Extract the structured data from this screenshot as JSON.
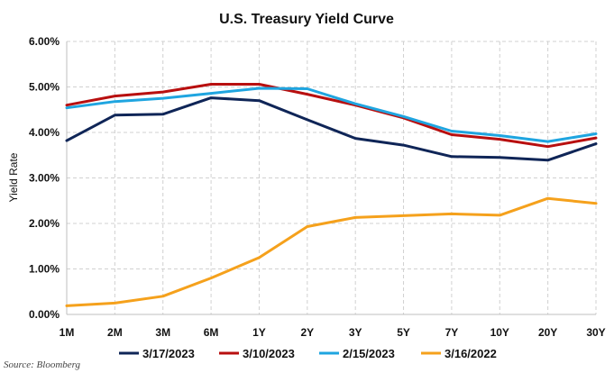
{
  "chart_data": {
    "type": "line",
    "title": "U.S. Treasury Yield Curve",
    "xlabel": "",
    "ylabel": "Yield Rate",
    "categories": [
      "1M",
      "2M",
      "3M",
      "6M",
      "1Y",
      "2Y",
      "3Y",
      "5Y",
      "7Y",
      "10Y",
      "20Y",
      "30Y"
    ],
    "ylim": [
      0,
      6
    ],
    "yticks": [
      "0.00%",
      "1.00%",
      "2.00%",
      "3.00%",
      "4.00%",
      "5.00%",
      "6.00%"
    ],
    "grid": true,
    "legend_position": "bottom",
    "series": [
      {
        "name": "3/17/2023",
        "color": "#0f2557",
        "values": [
          3.82,
          4.38,
          4.4,
          4.76,
          4.7,
          4.28,
          3.87,
          3.72,
          3.47,
          3.45,
          3.39,
          3.75
        ]
      },
      {
        "name": "3/10/2023",
        "color": "#b80f0f",
        "values": [
          4.6,
          4.8,
          4.89,
          5.06,
          5.06,
          4.84,
          4.6,
          4.32,
          3.95,
          3.85,
          3.69,
          3.88
        ]
      },
      {
        "name": "2/15/2023",
        "color": "#1fa5e0",
        "values": [
          4.54,
          4.68,
          4.75,
          4.86,
          4.97,
          4.96,
          4.63,
          4.35,
          4.03,
          3.93,
          3.8,
          3.97
        ]
      },
      {
        "name": "3/16/2022",
        "color": "#f5a11c",
        "values": [
          0.19,
          0.25,
          0.4,
          0.8,
          1.25,
          1.93,
          2.13,
          2.17,
          2.21,
          2.18,
          2.55,
          2.44
        ]
      }
    ]
  },
  "source": "Source: Bloomberg"
}
